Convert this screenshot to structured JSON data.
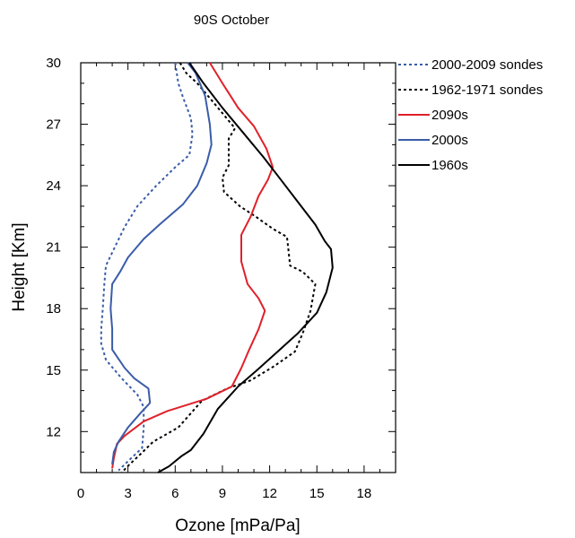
{
  "chart_data": {
    "type": "line",
    "title": "90S October",
    "xlabel": "Ozone [mPa/Pa]",
    "ylabel": "Height [Km]",
    "xlim": [
      0,
      20
    ],
    "ylim": [
      10,
      30
    ],
    "xticks": [
      0,
      3,
      6,
      9,
      12,
      15,
      18
    ],
    "yticks": [
      12,
      15,
      18,
      21,
      24,
      27,
      30
    ],
    "grid": false,
    "legend_position": "top-right outside",
    "series": [
      {
        "name": "2000-2009 sondes",
        "color": "#3a5ca8",
        "dash": "dotted",
        "points": [
          [
            6.0,
            30
          ],
          [
            6.2,
            29
          ],
          [
            6.5,
            28.3
          ],
          [
            7.0,
            27.3
          ],
          [
            7.1,
            26.5
          ],
          [
            6.9,
            25.5
          ],
          [
            6.0,
            24.9
          ],
          [
            4.8,
            24.0
          ],
          [
            3.6,
            23.0
          ],
          [
            2.8,
            22.0
          ],
          [
            2.1,
            20.9
          ],
          [
            1.6,
            20.1
          ],
          [
            1.5,
            19.2
          ],
          [
            1.4,
            18.0
          ],
          [
            1.3,
            17.0
          ],
          [
            1.3,
            16.3
          ],
          [
            1.6,
            15.5
          ],
          [
            2.6,
            14.6
          ],
          [
            3.6,
            13.8
          ],
          [
            4.0,
            13.2
          ],
          [
            4.0,
            12.2
          ],
          [
            3.9,
            11.2
          ],
          [
            3.2,
            10.7
          ],
          [
            2.4,
            10.1
          ]
        ]
      },
      {
        "name": "1962-1971 sondes",
        "color": "#000000",
        "dash": "dotted",
        "points": [
          [
            6.3,
            30
          ],
          [
            6.7,
            29.5
          ],
          [
            7.4,
            29
          ],
          [
            8.5,
            28.0
          ],
          [
            9.8,
            26.8
          ],
          [
            9.4,
            26.3
          ],
          [
            9.4,
            25.0
          ],
          [
            9.0,
            24.4
          ],
          [
            9.1,
            23.7
          ],
          [
            10.1,
            23.0
          ],
          [
            11.1,
            22.5
          ],
          [
            12.2,
            21.9
          ],
          [
            13.1,
            21.5
          ],
          [
            13.2,
            20.8
          ],
          [
            13.3,
            20.1
          ],
          [
            14.1,
            19.8
          ],
          [
            14.9,
            19.2
          ],
          [
            14.6,
            17.9
          ],
          [
            14.1,
            16.8
          ],
          [
            13.6,
            15.9
          ],
          [
            12.3,
            15.2
          ],
          [
            10.8,
            14.5
          ],
          [
            9.3,
            14.1
          ],
          [
            7.7,
            13.5
          ],
          [
            6.2,
            12.2
          ],
          [
            4.6,
            11.5
          ],
          [
            3.8,
            10.9
          ],
          [
            3.1,
            10.4
          ],
          [
            2.6,
            10.0
          ]
        ]
      },
      {
        "name": "2090s",
        "color": "#e0202a",
        "dash": "solid",
        "points": [
          [
            8.2,
            30
          ],
          [
            9.0,
            29.0
          ],
          [
            10.0,
            27.8
          ],
          [
            11.0,
            26.9
          ],
          [
            11.8,
            25.8
          ],
          [
            12.2,
            24.9
          ],
          [
            11.9,
            24.3
          ],
          [
            11.3,
            23.5
          ],
          [
            10.8,
            22.5
          ],
          [
            10.2,
            21.6
          ],
          [
            10.2,
            20.3
          ],
          [
            10.6,
            19.2
          ],
          [
            11.3,
            18.5
          ],
          [
            11.7,
            17.9
          ],
          [
            11.3,
            17.0
          ],
          [
            10.7,
            16.0
          ],
          [
            10.2,
            15.1
          ],
          [
            9.6,
            14.2
          ],
          [
            8.0,
            13.6
          ],
          [
            5.5,
            13.0
          ],
          [
            4.0,
            12.5
          ],
          [
            2.8,
            11.8
          ],
          [
            2.3,
            11.4
          ],
          [
            2.1,
            10.7
          ],
          [
            2.0,
            10.2
          ]
        ]
      },
      {
        "name": "2000s",
        "color": "#3a5ca8",
        "dash": "solid",
        "points": [
          [
            6.8,
            30
          ],
          [
            7.3,
            29.5
          ],
          [
            7.9,
            28.4
          ],
          [
            8.2,
            27.0
          ],
          [
            8.3,
            26.0
          ],
          [
            8.0,
            25.1
          ],
          [
            7.4,
            24.0
          ],
          [
            6.5,
            23.1
          ],
          [
            5.0,
            22.1
          ],
          [
            4.0,
            21.4
          ],
          [
            3.0,
            20.5
          ],
          [
            2.5,
            19.8
          ],
          [
            2.0,
            19.2
          ],
          [
            1.9,
            18.0
          ],
          [
            2.0,
            17.0
          ],
          [
            2.0,
            16.0
          ],
          [
            2.8,
            15.1
          ],
          [
            3.4,
            14.6
          ],
          [
            4.3,
            14.1
          ],
          [
            4.4,
            13.4
          ],
          [
            3.8,
            12.9
          ],
          [
            3.0,
            12.2
          ],
          [
            2.4,
            11.5
          ],
          [
            2.1,
            11.0
          ],
          [
            2.0,
            10.4
          ]
        ]
      },
      {
        "name": "1960s",
        "color": "#000000",
        "dash": "solid",
        "points": [
          [
            6.9,
            30
          ],
          [
            7.8,
            29.0
          ],
          [
            9.0,
            27.8
          ],
          [
            10.3,
            26.6
          ],
          [
            11.6,
            25.4
          ],
          [
            12.7,
            24.3
          ],
          [
            13.8,
            23.2
          ],
          [
            14.9,
            22.1
          ],
          [
            15.5,
            21.3
          ],
          [
            15.9,
            20.9
          ],
          [
            16.0,
            20.0
          ],
          [
            15.6,
            18.8
          ],
          [
            15.0,
            17.8
          ],
          [
            13.8,
            16.8
          ],
          [
            12.5,
            15.9
          ],
          [
            11.2,
            15.0
          ],
          [
            10.0,
            14.2
          ],
          [
            8.7,
            13.1
          ],
          [
            7.8,
            11.9
          ],
          [
            7.0,
            11.1
          ],
          [
            6.4,
            10.8
          ],
          [
            5.6,
            10.3
          ],
          [
            4.9,
            10.0
          ]
        ]
      }
    ]
  }
}
